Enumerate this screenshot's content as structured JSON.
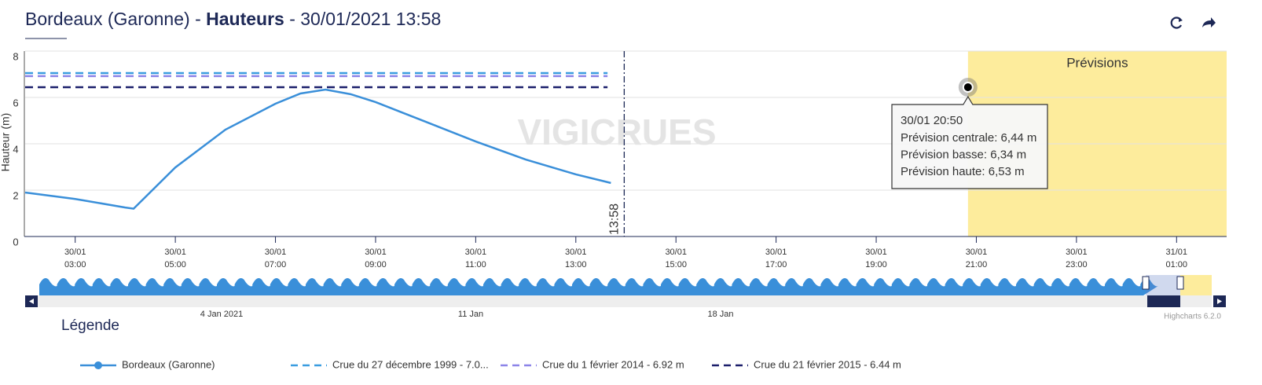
{
  "header": {
    "title_parts": [
      "Bordeaux (Garonne) - ",
      "Hauteurs",
      " - 30/01/2021 13:58"
    ]
  },
  "chart_data": {
    "type": "line",
    "y_label": "Hauteur (m)",
    "ylim": [
      0,
      8
    ],
    "yticks": [
      0,
      2,
      4,
      6,
      8
    ],
    "xlim": [
      "30/01 02:00",
      "31/01 02:00"
    ],
    "xticks": [
      "30/01 03:00",
      "30/01 05:00",
      "30/01 07:00",
      "30/01 09:00",
      "30/01 11:00",
      "30/01 13:00",
      "30/01 15:00",
      "30/01 17:00",
      "30/01 19:00",
      "30/01 21:00",
      "30/01 23:00",
      "31/01 01:00"
    ],
    "grid": true,
    "watermark": "VIGICRUES",
    "series": [
      {
        "name": "Bordeaux (Garonne)",
        "color": "#3a8fd9",
        "marker": true,
        "x": [
          "30/01 02:00",
          "30/01 03:00",
          "30/01 04:00",
          "30/01 04:10",
          "30/01 05:00",
          "30/01 06:00",
          "30/01 07:00",
          "30/01 07:30",
          "30/01 08:00",
          "30/01 08:30",
          "30/01 09:00",
          "30/01 10:00",
          "30/01 11:00",
          "30/01 12:00",
          "30/01 13:00",
          "30/01 13:42"
        ],
        "values": [
          1.9,
          1.62,
          1.25,
          1.2,
          2.98,
          4.61,
          5.73,
          6.17,
          6.34,
          6.14,
          5.8,
          4.95,
          4.1,
          3.32,
          2.68,
          2.31
        ]
      },
      {
        "name": "Crue du 27 décembre 1999 - 7.0...",
        "color": "#3a9de0",
        "dash": true,
        "x": [
          "30/01 02:00",
          "30/01 13:38"
        ],
        "values": [
          7.05,
          7.05
        ]
      },
      {
        "name": "Crue du 1 février 2014 - 6.92 m",
        "color": "#8c84e8",
        "dash": true,
        "x": [
          "30/01 02:00",
          "30/01 13:38"
        ],
        "values": [
          6.92,
          6.92
        ]
      },
      {
        "name": "Crue du 21 février 2015 - 6.44 m",
        "color": "#1b1f6b",
        "dash": true,
        "x": [
          "30/01 02:00",
          "30/01 13:38"
        ],
        "values": [
          6.44,
          6.44
        ]
      }
    ],
    "plot_line": {
      "x": "30/01 13:58",
      "label": "13:58"
    },
    "plot_band": {
      "from": "30/01 20:50",
      "label": "Prévisions",
      "color": "#fdec9c"
    },
    "forecast_point": {
      "x": "30/01 20:50",
      "value": 6.44
    },
    "tooltip": {
      "title": "30/01 20:50",
      "lines": [
        "Prévision centrale: 6,44 m",
        "Prévision basse: 6,34 m",
        "Prévision haute: 6,53 m"
      ]
    },
    "navigator_labels": [
      "4 Jan 2021",
      "11 Jan",
      "18 Jan"
    ],
    "legend_title": "Légende",
    "credits": "Highcharts 6.2.0"
  }
}
